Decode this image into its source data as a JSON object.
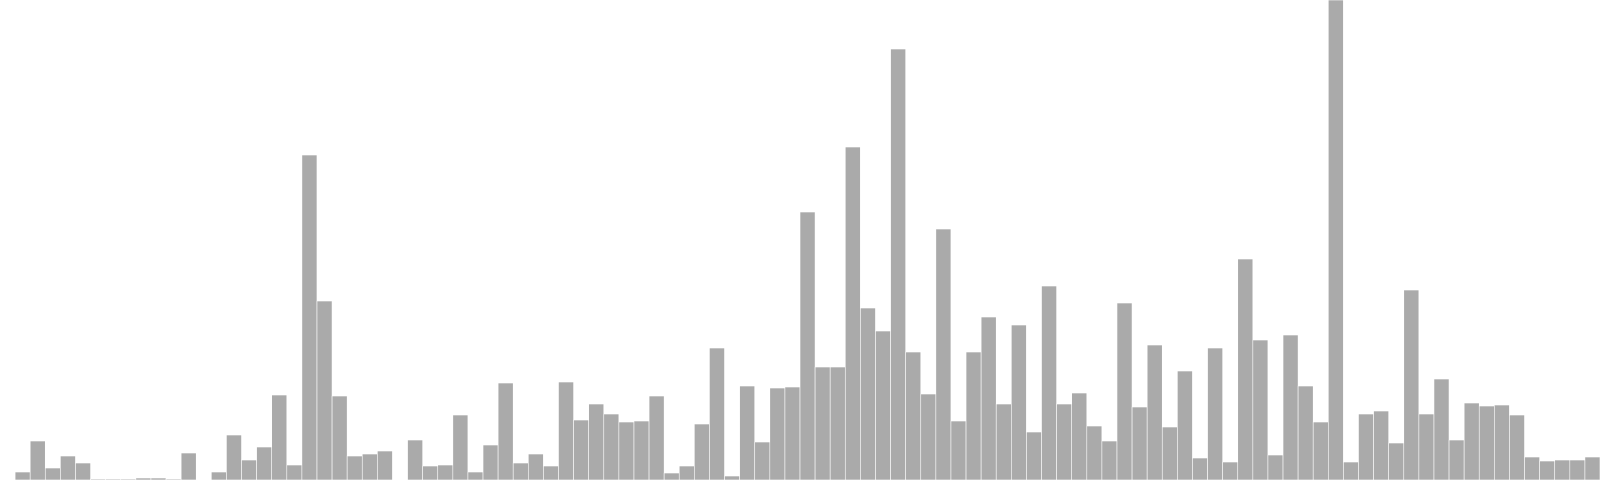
{
  "chart_data": {
    "type": "bar",
    "title": "",
    "xlabel": "",
    "ylabel": "",
    "ylim": [
      0,
      480
    ],
    "grid": false,
    "legend": "none",
    "bar_color": "#aaaaaa",
    "background": "#ffffff",
    "values": [
      0,
      8,
      39,
      12,
      24,
      17,
      1,
      1,
      1,
      2,
      2,
      1,
      27,
      0,
      8,
      45,
      20,
      33,
      85,
      15,
      325,
      179,
      84,
      24,
      26,
      29,
      0,
      40,
      14,
      15,
      65,
      8,
      35,
      97,
      17,
      26,
      14,
      98,
      60,
      76,
      66,
      58,
      59,
      84,
      7,
      14,
      56,
      132,
      4,
      94,
      38,
      92,
      93,
      268,
      113,
      113,
      333,
      172,
      149,
      431,
      128,
      86,
      251,
      59,
      128,
      163,
      76,
      155,
      48,
      194,
      76,
      87,
      54,
      39,
      177,
      73,
      135,
      53,
      109,
      22,
      132,
      18,
      221,
      140,
      25,
      145,
      94,
      58,
      480,
      18,
      66,
      69,
      37,
      190,
      66,
      101,
      40,
      77,
      74,
      75,
      65,
      23,
      19,
      20,
      20,
      23
    ]
  }
}
